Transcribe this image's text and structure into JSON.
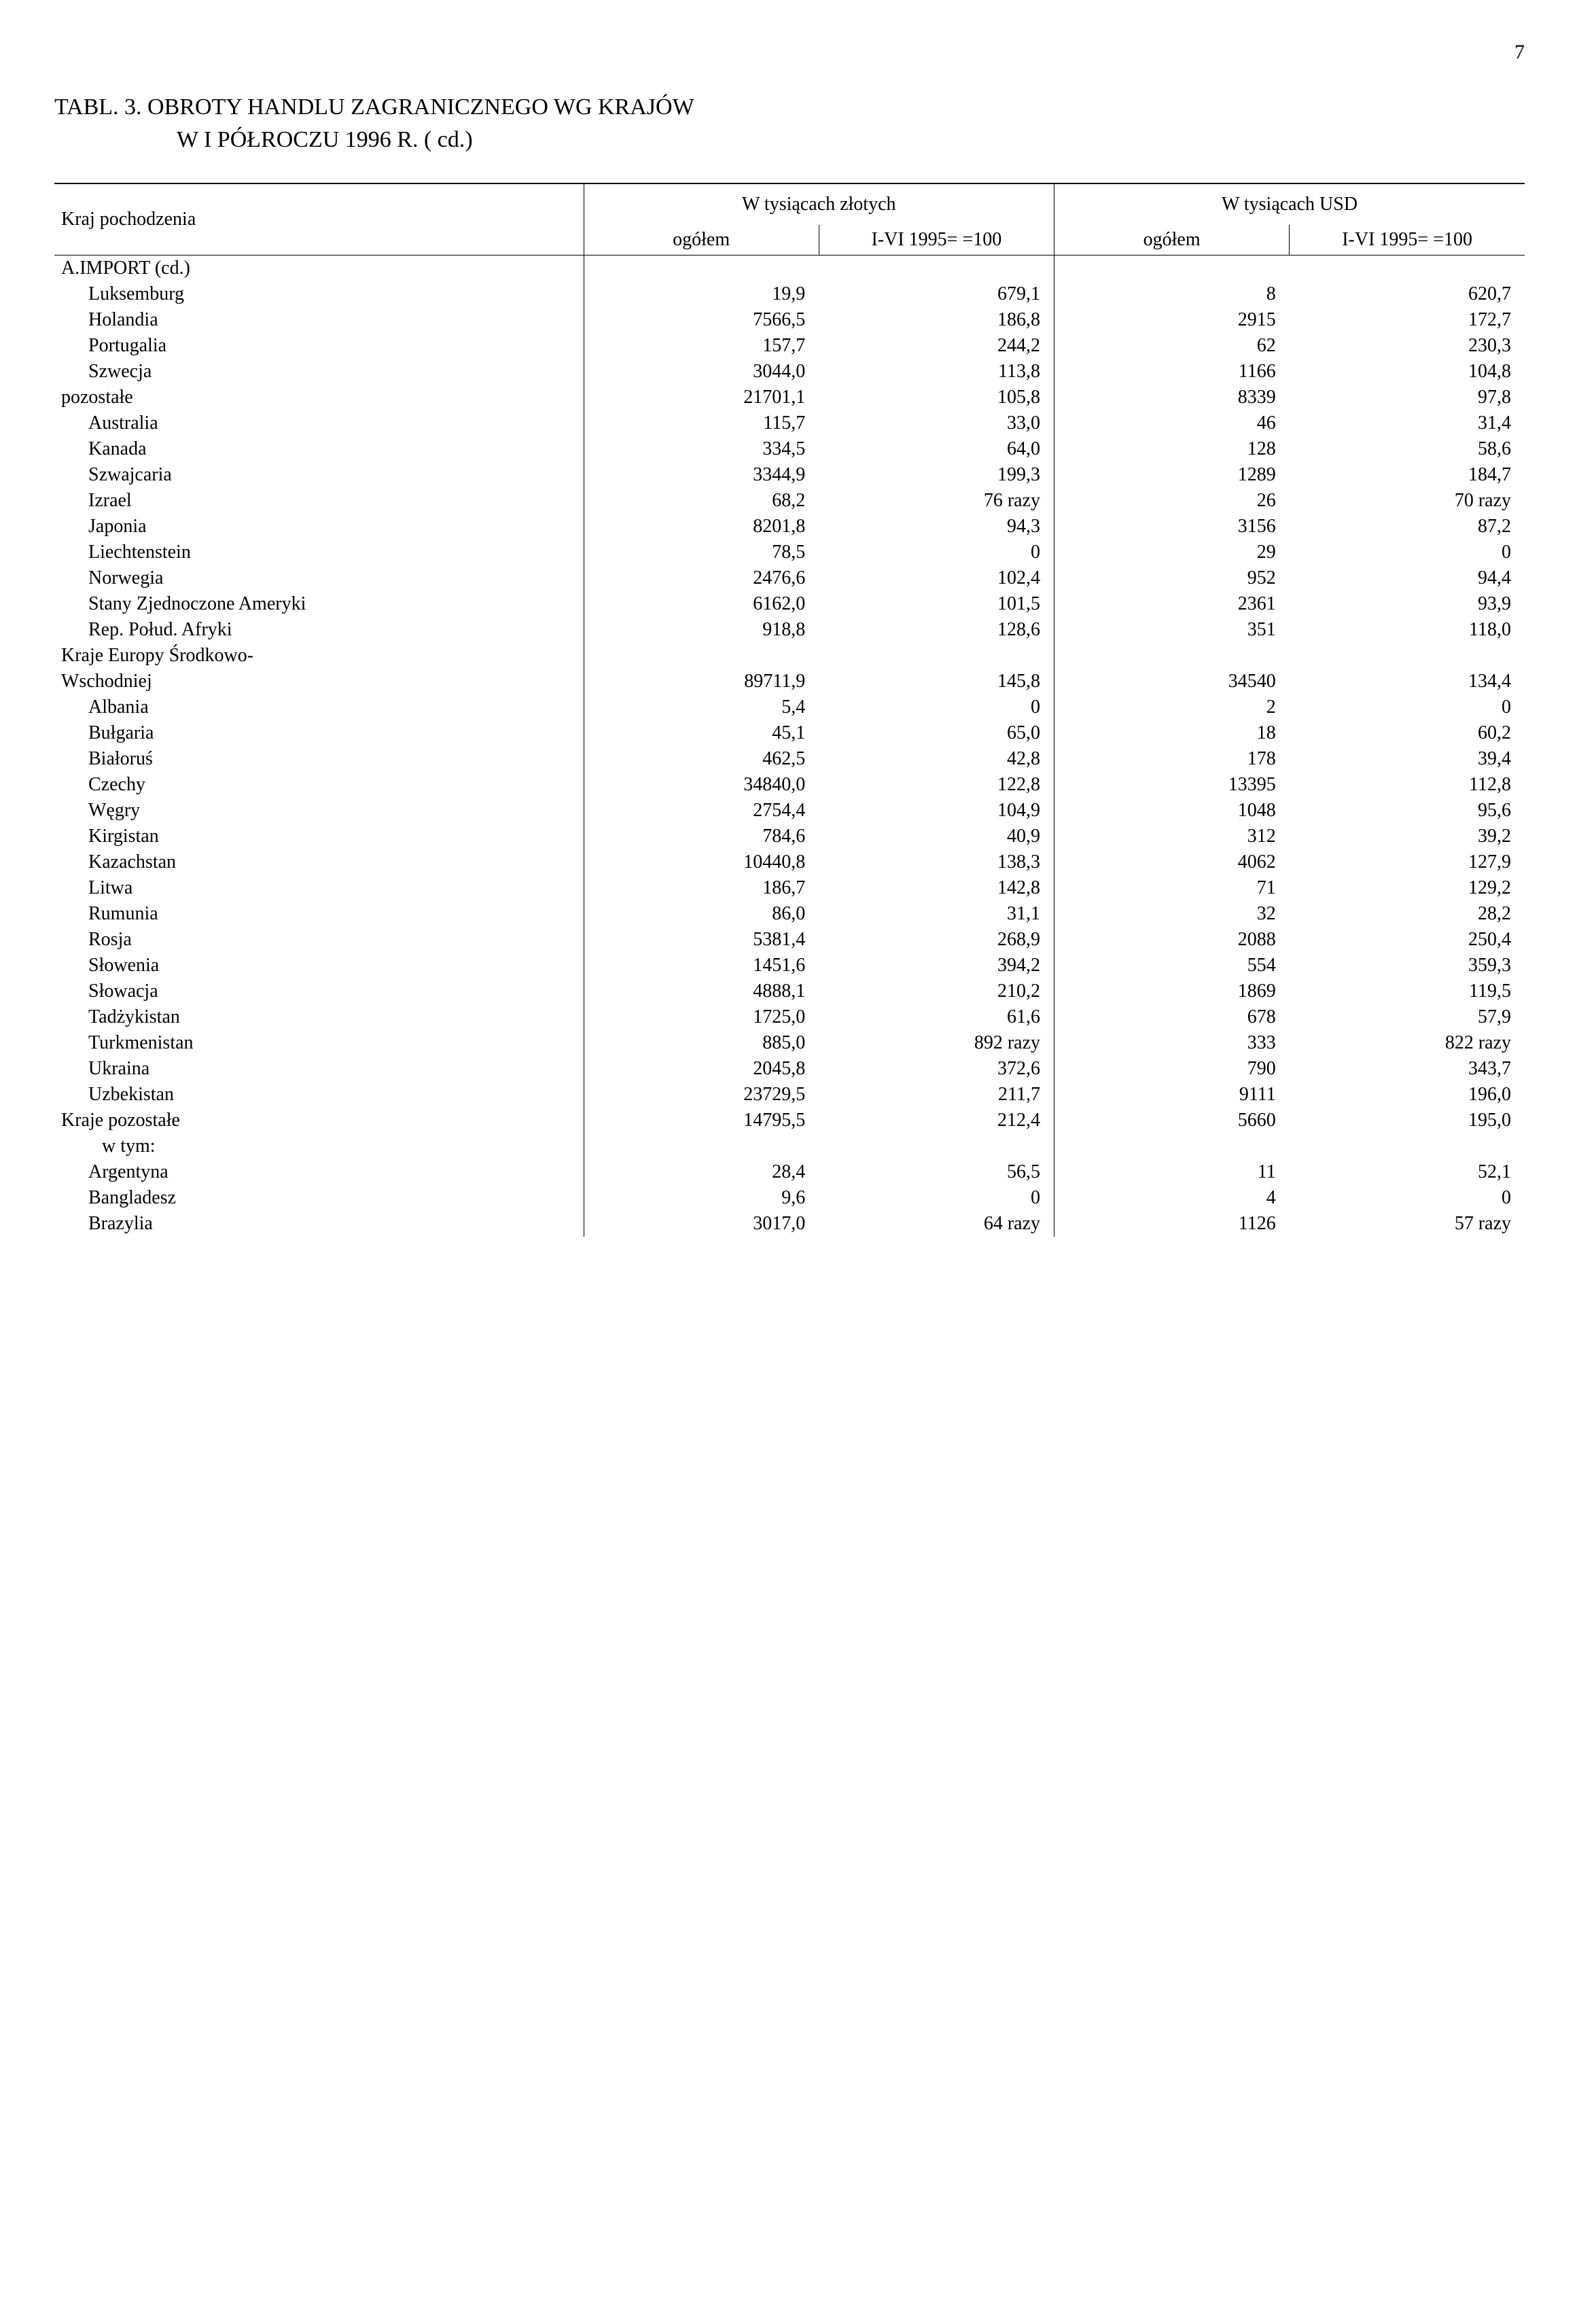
{
  "pageNumber": "7",
  "title": {
    "line1": "TABL. 3. OBROTY HANDLU ZAGRANICZNEGO WG KRAJÓW",
    "line2": "W I PÓŁROCZU 1996 R. ( cd.)"
  },
  "header": {
    "origin": "Kraj pochodzenia",
    "group1": "W tysiącach złotych",
    "group2": "W tysiącach USD",
    "subTotal": "ogółem",
    "subIndex": "I-VI 1995=\n=100"
  },
  "rows": [
    {
      "label": "A.IMPORT (cd.)",
      "indent": 0,
      "v": [
        "",
        "",
        "",
        ""
      ]
    },
    {
      "label": "Luksemburg",
      "indent": 1,
      "v": [
        "19,9",
        "679,1",
        "8",
        "620,7"
      ]
    },
    {
      "label": "Holandia",
      "indent": 1,
      "v": [
        "7566,5",
        "186,8",
        "2915",
        "172,7"
      ]
    },
    {
      "label": "Portugalia",
      "indent": 1,
      "v": [
        "157,7",
        "244,2",
        "62",
        "230,3"
      ]
    },
    {
      "label": "Szwecja",
      "indent": 1,
      "v": [
        "3044,0",
        "113,8",
        "1166",
        "104,8"
      ]
    },
    {
      "label": "pozostałe",
      "indent": 0,
      "v": [
        "21701,1",
        "105,8",
        "8339",
        "97,8"
      ]
    },
    {
      "label": "Australia",
      "indent": 1,
      "v": [
        "115,7",
        "33,0",
        "46",
        "31,4"
      ]
    },
    {
      "label": "Kanada",
      "indent": 1,
      "v": [
        "334,5",
        "64,0",
        "128",
        "58,6"
      ]
    },
    {
      "label": "Szwajcaria",
      "indent": 1,
      "v": [
        "3344,9",
        "199,3",
        "1289",
        "184,7"
      ]
    },
    {
      "label": "Izrael",
      "indent": 1,
      "v": [
        "68,2",
        "76 razy",
        "26",
        "70 razy"
      ]
    },
    {
      "label": "Japonia",
      "indent": 1,
      "v": [
        "8201,8",
        "94,3",
        "3156",
        "87,2"
      ]
    },
    {
      "label": "Liechtenstein",
      "indent": 1,
      "v": [
        "78,5",
        "0",
        "29",
        "0"
      ]
    },
    {
      "label": "Norwegia",
      "indent": 1,
      "v": [
        "2476,6",
        "102,4",
        "952",
        "94,4"
      ]
    },
    {
      "label": "Stany Zjednoczone Ameryki",
      "indent": 1,
      "v": [
        "6162,0",
        "101,5",
        "2361",
        "93,9"
      ]
    },
    {
      "label": "Rep. Połud. Afryki",
      "indent": 1,
      "v": [
        "918,8",
        "128,6",
        "351",
        "118,0"
      ]
    },
    {
      "label": "Kraje Europy Środkowo-",
      "indent": 0,
      "v": [
        "",
        "",
        "",
        ""
      ]
    },
    {
      "label": "Wschodniej",
      "indent": 0,
      "v": [
        "89711,9",
        "145,8",
        "34540",
        "134,4"
      ]
    },
    {
      "label": "Albania",
      "indent": 1,
      "v": [
        "5,4",
        "0",
        "2",
        "0"
      ]
    },
    {
      "label": "Bułgaria",
      "indent": 1,
      "v": [
        "45,1",
        "65,0",
        "18",
        "60,2"
      ]
    },
    {
      "label": "Białoruś",
      "indent": 1,
      "v": [
        "462,5",
        "42,8",
        "178",
        "39,4"
      ]
    },
    {
      "label": "Czechy",
      "indent": 1,
      "v": [
        "34840,0",
        "122,8",
        "13395",
        "112,8"
      ]
    },
    {
      "label": "Węgry",
      "indent": 1,
      "v": [
        "2754,4",
        "104,9",
        "1048",
        "95,6"
      ]
    },
    {
      "label": "Kirgistan",
      "indent": 1,
      "v": [
        "784,6",
        "40,9",
        "312",
        "39,2"
      ]
    },
    {
      "label": "Kazachstan",
      "indent": 1,
      "v": [
        "10440,8",
        "138,3",
        "4062",
        "127,9"
      ]
    },
    {
      "label": "Litwa",
      "indent": 1,
      "v": [
        "186,7",
        "142,8",
        "71",
        "129,2"
      ]
    },
    {
      "label": "Rumunia",
      "indent": 1,
      "v": [
        "86,0",
        "31,1",
        "32",
        "28,2"
      ]
    },
    {
      "label": "Rosja",
      "indent": 1,
      "v": [
        "5381,4",
        "268,9",
        "2088",
        "250,4"
      ]
    },
    {
      "label": "Słowenia",
      "indent": 1,
      "v": [
        "1451,6",
        "394,2",
        "554",
        "359,3"
      ]
    },
    {
      "label": "Słowacja",
      "indent": 1,
      "v": [
        "4888,1",
        "210,2",
        "1869",
        "119,5"
      ]
    },
    {
      "label": "Tadżykistan",
      "indent": 1,
      "v": [
        "1725,0",
        "61,6",
        "678",
        "57,9"
      ]
    },
    {
      "label": "Turkmenistan",
      "indent": 1,
      "v": [
        "885,0",
        "892 razy",
        "333",
        "822 razy"
      ]
    },
    {
      "label": "Ukraina",
      "indent": 1,
      "v": [
        "2045,8",
        "372,6",
        "790",
        "343,7"
      ]
    },
    {
      "label": "Uzbekistan",
      "indent": 1,
      "v": [
        "23729,5",
        "211,7",
        "9111",
        "196,0"
      ]
    },
    {
      "label": "Kraje pozostałe",
      "indent": 0,
      "v": [
        "14795,5",
        "212,4",
        "5660",
        "195,0"
      ]
    },
    {
      "label": "w tym:",
      "indent": 2,
      "v": [
        "",
        "",
        "",
        ""
      ]
    },
    {
      "label": "Argentyna",
      "indent": 1,
      "v": [
        "28,4",
        "56,5",
        "11",
        "52,1"
      ]
    },
    {
      "label": "Bangladesz",
      "indent": 1,
      "v": [
        "9,6",
        "0",
        "4",
        "0"
      ]
    },
    {
      "label": "Brazylia",
      "indent": 1,
      "v": [
        "3017,0",
        "64 razy",
        "1126",
        "57 razy"
      ]
    }
  ]
}
